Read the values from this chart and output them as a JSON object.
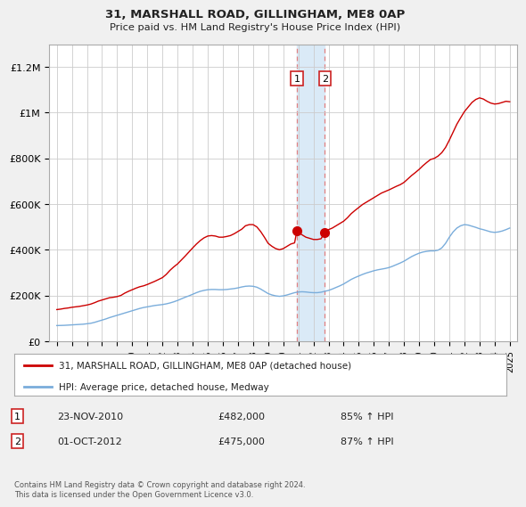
{
  "title": "31, MARSHALL ROAD, GILLINGHAM, ME8 0AP",
  "subtitle": "Price paid vs. HM Land Registry's House Price Index (HPI)",
  "ylabel_ticks": [
    "£0",
    "£200K",
    "£400K",
    "£600K",
    "£800K",
    "£1M",
    "£1.2M"
  ],
  "ytick_values": [
    0,
    200000,
    400000,
    600000,
    800000,
    1000000,
    1200000
  ],
  "ylim": [
    0,
    1300000
  ],
  "legend_line1": "31, MARSHALL ROAD, GILLINGHAM, ME8 0AP (detached house)",
  "legend_line2": "HPI: Average price, detached house, Medway",
  "transaction1_date": "23-NOV-2010",
  "transaction1_price": "£482,000",
  "transaction1_hpi": "85% ↑ HPI",
  "transaction2_date": "01-OCT-2012",
  "transaction2_price": "£475,000",
  "transaction2_hpi": "87% ↑ HPI",
  "footnote": "Contains HM Land Registry data © Crown copyright and database right 2024.\nThis data is licensed under the Open Government Licence v3.0.",
  "red_line_color": "#cc0000",
  "blue_line_color": "#7aaddb",
  "background_color": "#f0f0f0",
  "plot_bg_color": "#ffffff",
  "grid_color": "#cccccc",
  "highlight_color": "#daeaf7",
  "transaction1_x": 2010.9,
  "transaction2_x": 2012.75,
  "red_x": [
    1995.0,
    1995.25,
    1995.5,
    1995.75,
    1996.0,
    1996.25,
    1996.5,
    1996.75,
    1997.0,
    1997.25,
    1997.5,
    1997.75,
    1998.0,
    1998.25,
    1998.5,
    1998.75,
    1999.0,
    1999.25,
    1999.5,
    1999.75,
    2000.0,
    2000.25,
    2000.5,
    2000.75,
    2001.0,
    2001.25,
    2001.5,
    2001.75,
    2002.0,
    2002.25,
    2002.5,
    2002.75,
    2003.0,
    2003.25,
    2003.5,
    2003.75,
    2004.0,
    2004.25,
    2004.5,
    2004.75,
    2005.0,
    2005.25,
    2005.5,
    2005.75,
    2006.0,
    2006.25,
    2006.5,
    2006.75,
    2007.0,
    2007.25,
    2007.5,
    2007.75,
    2008.0,
    2008.25,
    2008.5,
    2008.75,
    2009.0,
    2009.25,
    2009.5,
    2009.75,
    2010.0,
    2010.25,
    2010.5,
    2010.75,
    2010.9,
    2011.0,
    2011.25,
    2011.5,
    2011.75,
    2012.0,
    2012.25,
    2012.5,
    2012.75,
    2013.0,
    2013.25,
    2013.5,
    2013.75,
    2014.0,
    2014.25,
    2014.5,
    2014.75,
    2015.0,
    2015.25,
    2015.5,
    2015.75,
    2016.0,
    2016.25,
    2016.5,
    2016.75,
    2017.0,
    2017.25,
    2017.5,
    2017.75,
    2018.0,
    2018.25,
    2018.5,
    2018.75,
    2019.0,
    2019.25,
    2019.5,
    2019.75,
    2020.0,
    2020.25,
    2020.5,
    2020.75,
    2021.0,
    2021.25,
    2021.5,
    2021.75,
    2022.0,
    2022.25,
    2022.5,
    2022.75,
    2023.0,
    2023.25,
    2023.5,
    2023.75,
    2024.0,
    2024.25,
    2024.5,
    2024.75,
    2025.0
  ],
  "red_y": [
    138000,
    140000,
    143000,
    145000,
    148000,
    150000,
    152000,
    155000,
    158000,
    162000,
    168000,
    175000,
    180000,
    185000,
    190000,
    192000,
    195000,
    200000,
    210000,
    218000,
    225000,
    232000,
    238000,
    242000,
    248000,
    255000,
    262000,
    270000,
    278000,
    292000,
    310000,
    325000,
    338000,
    355000,
    372000,
    390000,
    408000,
    425000,
    440000,
    452000,
    460000,
    462000,
    460000,
    455000,
    455000,
    458000,
    462000,
    470000,
    480000,
    490000,
    505000,
    510000,
    510000,
    500000,
    480000,
    455000,
    428000,
    415000,
    405000,
    400000,
    405000,
    415000,
    425000,
    430000,
    482000,
    478000,
    465000,
    455000,
    450000,
    445000,
    445000,
    448000,
    475000,
    488000,
    495000,
    505000,
    515000,
    525000,
    540000,
    558000,
    572000,
    585000,
    598000,
    608000,
    618000,
    628000,
    638000,
    648000,
    655000,
    662000,
    670000,
    678000,
    685000,
    695000,
    710000,
    725000,
    738000,
    752000,
    768000,
    782000,
    795000,
    800000,
    810000,
    825000,
    848000,
    880000,
    915000,
    950000,
    978000,
    1005000,
    1025000,
    1045000,
    1058000,
    1065000,
    1060000,
    1050000,
    1042000,
    1038000,
    1040000,
    1045000,
    1050000,
    1048000
  ],
  "blue_x": [
    1995.0,
    1995.25,
    1995.5,
    1995.75,
    1996.0,
    1996.25,
    1996.5,
    1996.75,
    1997.0,
    1997.25,
    1997.5,
    1997.75,
    1998.0,
    1998.25,
    1998.5,
    1998.75,
    1999.0,
    1999.25,
    1999.5,
    1999.75,
    2000.0,
    2000.25,
    2000.5,
    2000.75,
    2001.0,
    2001.25,
    2001.5,
    2001.75,
    2002.0,
    2002.25,
    2002.5,
    2002.75,
    2003.0,
    2003.25,
    2003.5,
    2003.75,
    2004.0,
    2004.25,
    2004.5,
    2004.75,
    2005.0,
    2005.25,
    2005.5,
    2005.75,
    2006.0,
    2006.25,
    2006.5,
    2006.75,
    2007.0,
    2007.25,
    2007.5,
    2007.75,
    2008.0,
    2008.25,
    2008.5,
    2008.75,
    2009.0,
    2009.25,
    2009.5,
    2009.75,
    2010.0,
    2010.25,
    2010.5,
    2010.75,
    2011.0,
    2011.25,
    2011.5,
    2011.75,
    2012.0,
    2012.25,
    2012.5,
    2012.75,
    2013.0,
    2013.25,
    2013.5,
    2013.75,
    2014.0,
    2014.25,
    2014.5,
    2014.75,
    2015.0,
    2015.25,
    2015.5,
    2015.75,
    2016.0,
    2016.25,
    2016.5,
    2016.75,
    2017.0,
    2017.25,
    2017.5,
    2017.75,
    2018.0,
    2018.25,
    2018.5,
    2018.75,
    2019.0,
    2019.25,
    2019.5,
    2019.75,
    2020.0,
    2020.25,
    2020.5,
    2020.75,
    2021.0,
    2021.25,
    2021.5,
    2021.75,
    2022.0,
    2022.25,
    2022.5,
    2022.75,
    2023.0,
    2023.25,
    2023.5,
    2023.75,
    2024.0,
    2024.25,
    2024.5,
    2024.75,
    2025.0
  ],
  "blue_y": [
    68000,
    68500,
    69000,
    70000,
    71000,
    72000,
    73000,
    74000,
    76000,
    78000,
    82000,
    87000,
    92000,
    97000,
    103000,
    108000,
    113000,
    118000,
    123000,
    128000,
    133000,
    138000,
    143000,
    147000,
    150000,
    153000,
    156000,
    158000,
    160000,
    163000,
    167000,
    172000,
    178000,
    185000,
    192000,
    198000,
    205000,
    212000,
    218000,
    222000,
    225000,
    226000,
    226000,
    225000,
    225000,
    226000,
    228000,
    230000,
    233000,
    237000,
    240000,
    241000,
    240000,
    236000,
    228000,
    218000,
    208000,
    202000,
    198000,
    196000,
    198000,
    202000,
    207000,
    212000,
    215000,
    216000,
    215000,
    213000,
    212000,
    212000,
    214000,
    218000,
    222000,
    228000,
    235000,
    242000,
    250000,
    260000,
    270000,
    278000,
    285000,
    292000,
    298000,
    303000,
    308000,
    312000,
    315000,
    318000,
    322000,
    328000,
    335000,
    342000,
    350000,
    360000,
    370000,
    378000,
    385000,
    390000,
    393000,
    395000,
    395000,
    398000,
    408000,
    428000,
    455000,
    478000,
    495000,
    505000,
    510000,
    508000,
    503000,
    498000,
    492000,
    488000,
    483000,
    478000,
    476000,
    478000,
    482000,
    488000,
    495000
  ]
}
